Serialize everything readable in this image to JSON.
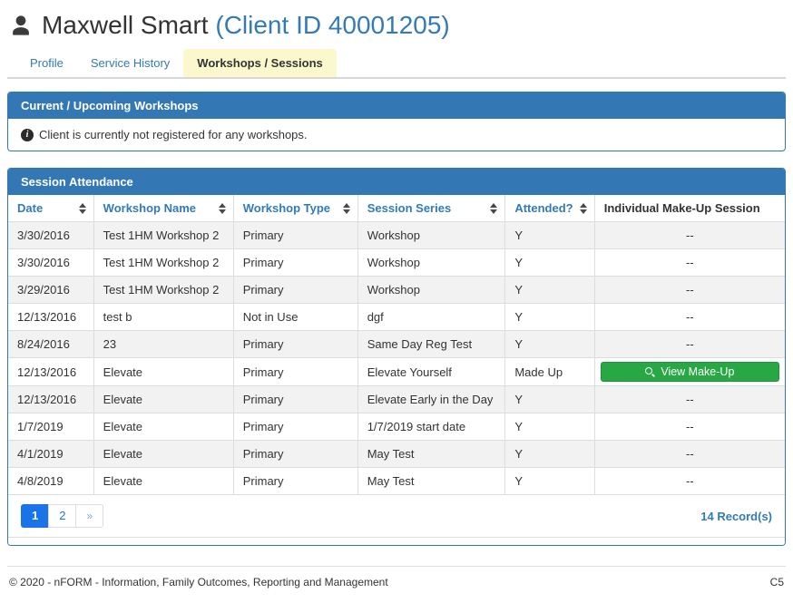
{
  "header": {
    "name": "Maxwell Smart",
    "client_id": "(Client ID 40001205)"
  },
  "tabs": {
    "items": [
      {
        "label": "Profile",
        "active": false
      },
      {
        "label": "Service History",
        "active": false
      },
      {
        "label": "Workshops / Sessions",
        "active": true
      }
    ]
  },
  "workshops_panel": {
    "title": "Current / Upcoming Workshops",
    "message": "Client is currently not registered for any workshops."
  },
  "attendance_panel": {
    "title": "Session Attendance",
    "columns": [
      {
        "label": "Date",
        "sortable": true
      },
      {
        "label": "Workshop Name",
        "sortable": true
      },
      {
        "label": "Workshop Type",
        "sortable": true
      },
      {
        "label": "Session Series",
        "sortable": true
      },
      {
        "label": "Attended?",
        "sortable": true
      },
      {
        "label": "Individual Make-Up Session",
        "sortable": false
      }
    ],
    "rows": [
      {
        "date": "3/30/2016",
        "workshop_name": "Test 1HM Workshop 2",
        "workshop_type": "Primary",
        "session_series": "Workshop",
        "attended": "Y",
        "makeup": "--"
      },
      {
        "date": "3/30/2016",
        "workshop_name": "Test 1HM Workshop 2",
        "workshop_type": "Primary",
        "session_series": "Workshop",
        "attended": "Y",
        "makeup": "--"
      },
      {
        "date": "3/29/2016",
        "workshop_name": "Test 1HM Workshop 2",
        "workshop_type": "Primary",
        "session_series": "Workshop",
        "attended": "Y",
        "makeup": "--"
      },
      {
        "date": "12/13/2016",
        "workshop_name": "test b",
        "workshop_type": "Not in Use",
        "session_series": "dgf",
        "attended": "Y",
        "makeup": "--"
      },
      {
        "date": "8/24/2016",
        "workshop_name": "23",
        "workshop_type": "Primary",
        "session_series": "Same Day Reg Test",
        "attended": "Y",
        "makeup": "--"
      },
      {
        "date": "12/13/2016",
        "workshop_name": "Elevate",
        "workshop_type": "Primary",
        "session_series": "Elevate Yourself",
        "attended": "Made Up",
        "makeup": "View Make-Up",
        "makeup_button": true
      },
      {
        "date": "12/13/2016",
        "workshop_name": "Elevate",
        "workshop_type": "Primary",
        "session_series": "Elevate Early in the Day",
        "attended": "Y",
        "makeup": "--"
      },
      {
        "date": "1/7/2019",
        "workshop_name": "Elevate",
        "workshop_type": "Primary",
        "session_series": "1/7/2019 start date",
        "attended": "Y",
        "makeup": "--"
      },
      {
        "date": "4/1/2019",
        "workshop_name": "Elevate",
        "workshop_type": "Primary",
        "session_series": "May Test",
        "attended": "Y",
        "makeup": "--"
      },
      {
        "date": "4/8/2019",
        "workshop_name": "Elevate",
        "workshop_type": "Primary",
        "session_series": "May Test",
        "attended": "Y",
        "makeup": "--"
      }
    ],
    "pagination": {
      "pages": [
        {
          "label": "1",
          "active": true
        },
        {
          "label": "2",
          "active": false
        },
        {
          "label": "»",
          "active": false,
          "next": true
        }
      ]
    },
    "record_count": "14 Record(s)"
  },
  "footer": {
    "copyright": "© 2020 - nFORM - Information, Family Outcomes, Reporting and Management",
    "code": "C5"
  },
  "icons": {
    "user_icon": "👤",
    "info_icon": "ⓘ",
    "search_icon": "🔍",
    "sort_icon": "⇕",
    "next_page_icon": "»"
  },
  "colors": {
    "panel_blue": "#3378b5",
    "link_blue": "#337ab7",
    "active_page_blue": "#1a73e8",
    "success_green": "#28a745",
    "tab_yellow": "#fbf8cd",
    "stripe_gray": "#f2f2f2",
    "border_gray": "#dddddd"
  }
}
